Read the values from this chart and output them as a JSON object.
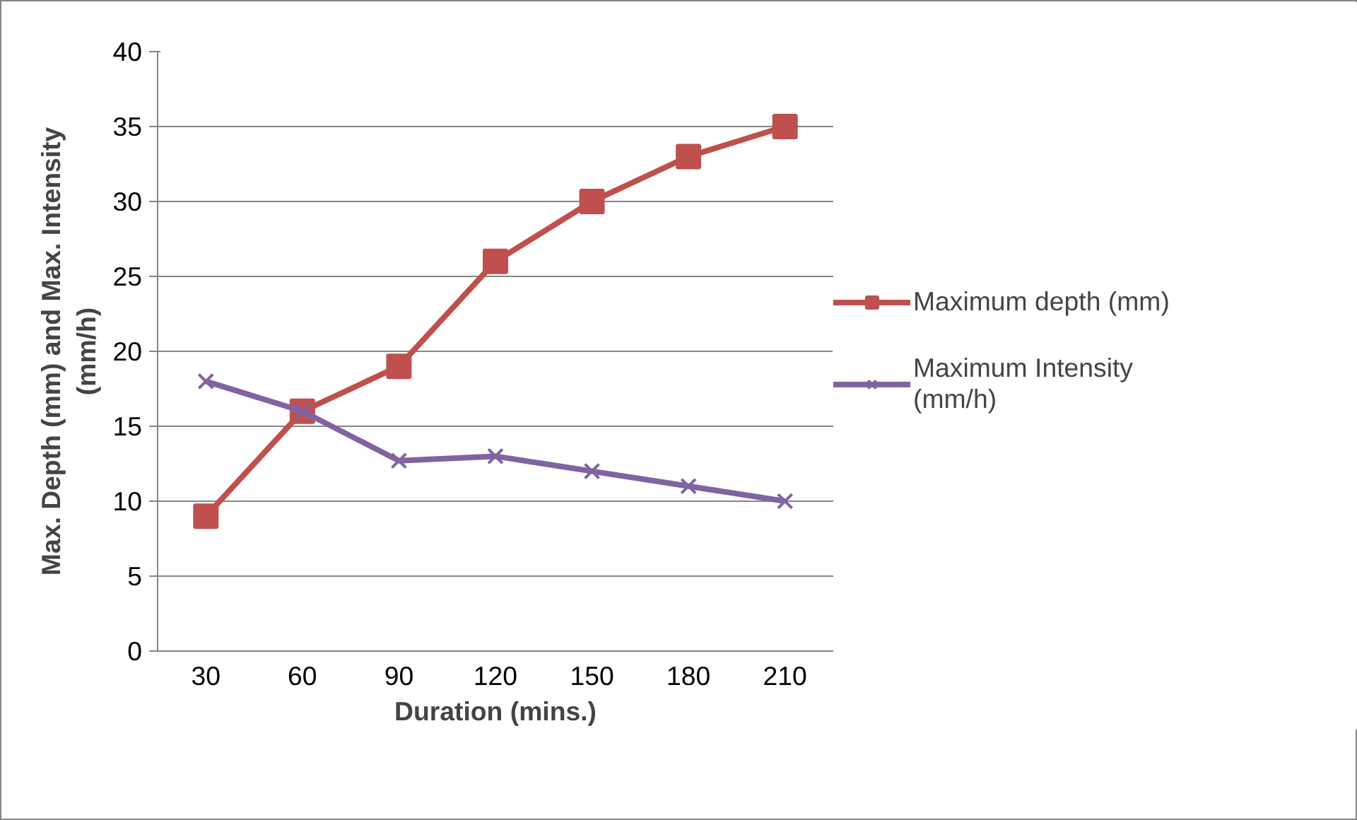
{
  "chart_data": {
    "type": "line",
    "xlabel": "Duration (mins.)",
    "ylabel": "Max. Depth (mm) and Max. Intensity\n(mm/h)",
    "categories": [
      "30",
      "60",
      "90",
      "120",
      "150",
      "180",
      "210"
    ],
    "series": [
      {
        "name": "Maximum depth (mm)",
        "color": "#c0504d",
        "marker": "square",
        "values": [
          9,
          16,
          19,
          26,
          30,
          33,
          35
        ]
      },
      {
        "name": "Maximum Intensity\n(mm/h)",
        "color": "#8064a2",
        "marker": "x",
        "values": [
          18,
          16,
          12.7,
          13,
          12,
          11,
          10
        ]
      }
    ],
    "ylim": [
      0,
      40
    ],
    "yticks": [
      0,
      5,
      10,
      15,
      20,
      25,
      30,
      35,
      40
    ],
    "grid": "y",
    "legend": "right"
  }
}
